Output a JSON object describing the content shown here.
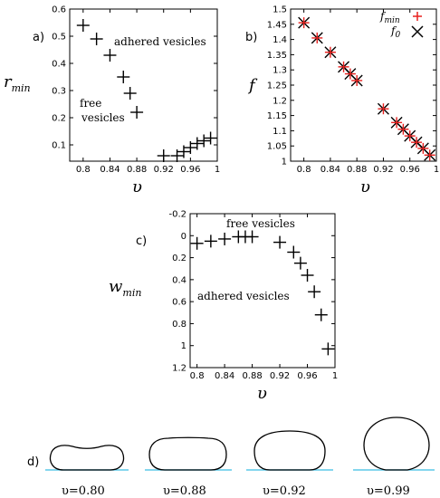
{
  "chart_data": [
    {
      "panel": "a)",
      "type": "scatter",
      "xlabel": "υ",
      "ylabel": "r",
      "ylabel_sub": "min",
      "xlim": [
        0.78,
        1.0
      ],
      "ylim": [
        0.04,
        0.6
      ],
      "xticks": [
        "0.8",
        "0.84",
        "0.88",
        "0.92",
        "0.96",
        "1"
      ],
      "yticks": [
        "0.1",
        "0.2",
        "0.3",
        "0.4",
        "0.5",
        "0.6"
      ],
      "annotations": [
        "adhered vesicles",
        "free",
        "vesicles"
      ],
      "series": [
        {
          "x": [
            0.8,
            0.82,
            0.84,
            0.86,
            0.87,
            0.88,
            0.92,
            0.94,
            0.95,
            0.96,
            0.97,
            0.98,
            0.99
          ],
          "y": [
            0.54,
            0.49,
            0.43,
            0.35,
            0.29,
            0.22,
            0.06,
            0.06,
            0.075,
            0.09,
            0.105,
            0.115,
            0.125
          ]
        }
      ]
    },
    {
      "panel": "b)",
      "type": "scatter",
      "xlabel": "υ",
      "ylabel": "f",
      "xlim": [
        0.78,
        1.0
      ],
      "ylim": [
        1.0,
        1.5
      ],
      "xticks": [
        "0.8",
        "0.84",
        "0.88",
        "0.92",
        "0.96",
        "1"
      ],
      "yticks": [
        "1",
        "1.05",
        "1.1",
        "1.15",
        "1.2",
        "1.25",
        "1.3",
        "1.35",
        "1.4",
        "1.45",
        "1.5"
      ],
      "legend": [
        "f",
        "f"
      ],
      "legend_subs": [
        "min",
        "0"
      ],
      "legend_colors": [
        "#e8201e",
        "#000000"
      ],
      "series": [
        {
          "x": [
            0.8,
            0.82,
            0.84,
            0.86,
            0.87,
            0.88,
            0.92,
            0.94,
            0.95,
            0.96,
            0.97,
            0.98,
            0.99
          ],
          "y": [
            1.455,
            1.405,
            1.358,
            1.31,
            1.287,
            1.265,
            1.172,
            1.127,
            1.105,
            1.083,
            1.062,
            1.042,
            1.02
          ]
        }
      ]
    },
    {
      "panel": "c)",
      "type": "scatter",
      "xlabel": "υ",
      "ylabel": "w",
      "ylabel_sub": "min",
      "xlim": [
        0.79,
        1.0
      ],
      "ylim": [
        -0.2,
        1.2
      ],
      "y_inverted": true,
      "xticks": [
        "0.8",
        "0.84",
        "0.88",
        "0.92",
        "0.96",
        "1"
      ],
      "yticks": [
        "-0.2",
        "0",
        "0.2",
        "0.4",
        "0.6",
        "0.8",
        "1",
        "1.2"
      ],
      "annotations": [
        "free vesicles",
        "adhered vesicles"
      ],
      "series": [
        {
          "x": [
            0.8,
            0.82,
            0.84,
            0.86,
            0.87,
            0.88,
            0.92,
            0.94,
            0.95,
            0.96,
            0.97,
            0.98,
            0.99
          ],
          "y": [
            0.07,
            0.05,
            0.03,
            0.01,
            0.01,
            0.01,
            0.06,
            0.15,
            0.25,
            0.36,
            0.51,
            0.72,
            1.03
          ]
        }
      ]
    }
  ],
  "shapes": {
    "panel": "d)",
    "labels": [
      "υ=0.80",
      "υ=0.88",
      "υ=0.92",
      "υ=0.99"
    ],
    "substrate_color": "#5bc8e8"
  }
}
